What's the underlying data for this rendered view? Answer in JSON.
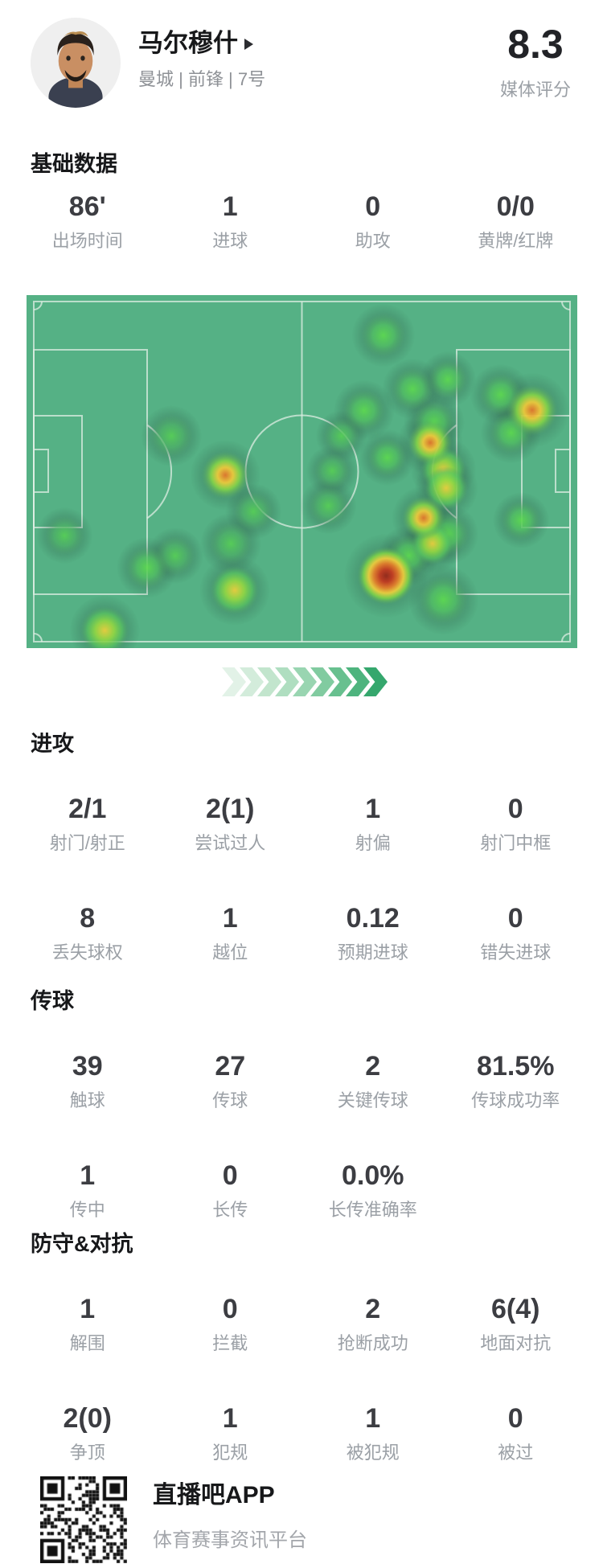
{
  "header": {
    "player_name": "马尔穆什",
    "team_position": "曼城 | 前锋 | 7号",
    "rating": "8.3",
    "rating_label": "媒体评分"
  },
  "sections": {
    "basic": {
      "title": "基础数据",
      "rows": [
        [
          {
            "v": "86'",
            "l": "出场时间"
          },
          {
            "v": "1",
            "l": "进球"
          },
          {
            "v": "0",
            "l": "助攻"
          },
          {
            "v": "0/0",
            "l": "黄牌/红牌"
          }
        ]
      ]
    },
    "attack": {
      "title": "进攻",
      "rows": [
        [
          {
            "v": "2/1",
            "l": "射门/射正"
          },
          {
            "v": "2(1)",
            "l": "尝试过人"
          },
          {
            "v": "1",
            "l": "射偏"
          },
          {
            "v": "0",
            "l": "射门中框"
          }
        ],
        [
          {
            "v": "8",
            "l": "丢失球权"
          },
          {
            "v": "1",
            "l": "越位"
          },
          {
            "v": "0.12",
            "l": "预期进球"
          },
          {
            "v": "0",
            "l": "错失进球"
          }
        ]
      ]
    },
    "passing": {
      "title": "传球",
      "rows": [
        [
          {
            "v": "39",
            "l": "触球"
          },
          {
            "v": "27",
            "l": "传球"
          },
          {
            "v": "2",
            "l": "关键传球"
          },
          {
            "v": "81.5%",
            "l": "传球成功率"
          }
        ],
        [
          {
            "v": "1",
            "l": "传中"
          },
          {
            "v": "0",
            "l": "长传"
          },
          {
            "v": "0.0%",
            "l": "长传准确率"
          },
          {
            "v": "",
            "l": ""
          }
        ]
      ]
    },
    "defense": {
      "title": "防守&对抗",
      "rows": [
        [
          {
            "v": "1",
            "l": "解围"
          },
          {
            "v": "0",
            "l": "拦截"
          },
          {
            "v": "2",
            "l": "抢断成功"
          },
          {
            "v": "6(4)",
            "l": "地面对抗"
          }
        ],
        [
          {
            "v": "2(0)",
            "l": "争顶"
          },
          {
            "v": "1",
            "l": "犯规"
          },
          {
            "v": "1",
            "l": "被犯规"
          },
          {
            "v": "0",
            "l": "被过"
          }
        ]
      ]
    }
  },
  "heatmap": {
    "pitch_color": "#55b185",
    "line_color": "#ddeee3",
    "heat_low_color": "#4ecb5f",
    "heat_mid_color": "#f2c838",
    "heat_high_color": "#e4732a",
    "heat_peak_color": "#9c2d1d",
    "points": [
      {
        "x": 0.263,
        "y": 0.399,
        "i": 0.45,
        "r": 26
      },
      {
        "x": 0.361,
        "y": 0.51,
        "i": 0.82,
        "r": 30
      },
      {
        "x": 0.412,
        "y": 0.613,
        "i": 0.45,
        "r": 24
      },
      {
        "x": 0.069,
        "y": 0.681,
        "i": 0.48,
        "r": 24
      },
      {
        "x": 0.219,
        "y": 0.772,
        "i": 0.5,
        "r": 26
      },
      {
        "x": 0.27,
        "y": 0.738,
        "i": 0.45,
        "r": 24
      },
      {
        "x": 0.371,
        "y": 0.704,
        "i": 0.45,
        "r": 26
      },
      {
        "x": 0.378,
        "y": 0.836,
        "i": 0.68,
        "r": 30
      },
      {
        "x": 0.142,
        "y": 0.95,
        "i": 0.7,
        "r": 30
      },
      {
        "x": 0.648,
        "y": 0.114,
        "i": 0.55,
        "r": 27
      },
      {
        "x": 0.765,
        "y": 0.239,
        "i": 0.5,
        "r": 24
      },
      {
        "x": 0.701,
        "y": 0.266,
        "i": 0.52,
        "r": 26
      },
      {
        "x": 0.74,
        "y": 0.36,
        "i": 0.6,
        "r": 26
      },
      {
        "x": 0.861,
        "y": 0.282,
        "i": 0.52,
        "r": 26
      },
      {
        "x": 0.918,
        "y": 0.326,
        "i": 0.93,
        "r": 32
      },
      {
        "x": 0.88,
        "y": 0.39,
        "i": 0.55,
        "r": 26
      },
      {
        "x": 0.613,
        "y": 0.327,
        "i": 0.5,
        "r": 26
      },
      {
        "x": 0.572,
        "y": 0.399,
        "i": 0.45,
        "r": 22
      },
      {
        "x": 0.733,
        "y": 0.418,
        "i": 0.8,
        "r": 28
      },
      {
        "x": 0.655,
        "y": 0.46,
        "i": 0.5,
        "r": 24
      },
      {
        "x": 0.555,
        "y": 0.498,
        "i": 0.45,
        "r": 22
      },
      {
        "x": 0.757,
        "y": 0.494,
        "i": 0.72,
        "r": 28
      },
      {
        "x": 0.762,
        "y": 0.547,
        "i": 0.72,
        "r": 27
      },
      {
        "x": 0.548,
        "y": 0.597,
        "i": 0.45,
        "r": 24
      },
      {
        "x": 0.721,
        "y": 0.631,
        "i": 0.82,
        "r": 27
      },
      {
        "x": 0.765,
        "y": 0.677,
        "i": 0.62,
        "r": 26
      },
      {
        "x": 0.737,
        "y": 0.704,
        "i": 0.76,
        "r": 26
      },
      {
        "x": 0.694,
        "y": 0.738,
        "i": 0.62,
        "r": 26
      },
      {
        "x": 0.653,
        "y": 0.795,
        "i": 1.0,
        "r": 36
      },
      {
        "x": 0.757,
        "y": 0.863,
        "i": 0.62,
        "r": 30
      },
      {
        "x": 0.898,
        "y": 0.638,
        "i": 0.5,
        "r": 24
      }
    ]
  },
  "chevrons": {
    "colors": [
      "#e2f2e7",
      "#d3ecdb",
      "#c2e5cd",
      "#afdec0",
      "#99d5b1",
      "#81cba0",
      "#68c08f",
      "#4eb47e",
      "#35a76d"
    ]
  },
  "footer": {
    "app_name": "直播吧APP",
    "app_desc": "体育赛事资讯平台"
  }
}
